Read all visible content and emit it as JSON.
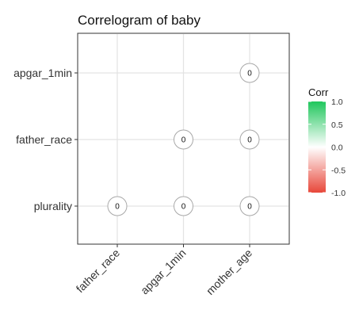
{
  "chart_data": {
    "type": "heatmap",
    "title": "Correlogram of baby",
    "x_categories": [
      "father_race",
      "apgar_1min",
      "mother_age"
    ],
    "y_categories": [
      "apgar_1min",
      "father_race",
      "plurality"
    ],
    "cells": [
      {
        "x": "mother_age",
        "y": "apgar_1min",
        "value": 0,
        "label": "0"
      },
      {
        "x": "apgar_1min",
        "y": "father_race",
        "value": 0,
        "label": "0"
      },
      {
        "x": "mother_age",
        "y": "father_race",
        "value": 0,
        "label": "0"
      },
      {
        "x": "father_race",
        "y": "plurality",
        "value": 0,
        "label": "0"
      },
      {
        "x": "apgar_1min",
        "y": "plurality",
        "value": 0,
        "label": "0"
      },
      {
        "x": "mother_age",
        "y": "plurality",
        "value": 0,
        "label": "0"
      }
    ],
    "legend": {
      "title": "Corr",
      "ticks": [
        "1.0",
        "0.5",
        "0.0",
        "-0.5",
        "-1.0"
      ],
      "tick_values": [
        1.0,
        0.5,
        0.0,
        -0.5,
        -1.0
      ],
      "range": [
        -1.0,
        1.0
      ],
      "colors": {
        "high": "#1fc65c",
        "mid": "#ffffff",
        "low": "#e8473a"
      }
    },
    "grid": true
  }
}
